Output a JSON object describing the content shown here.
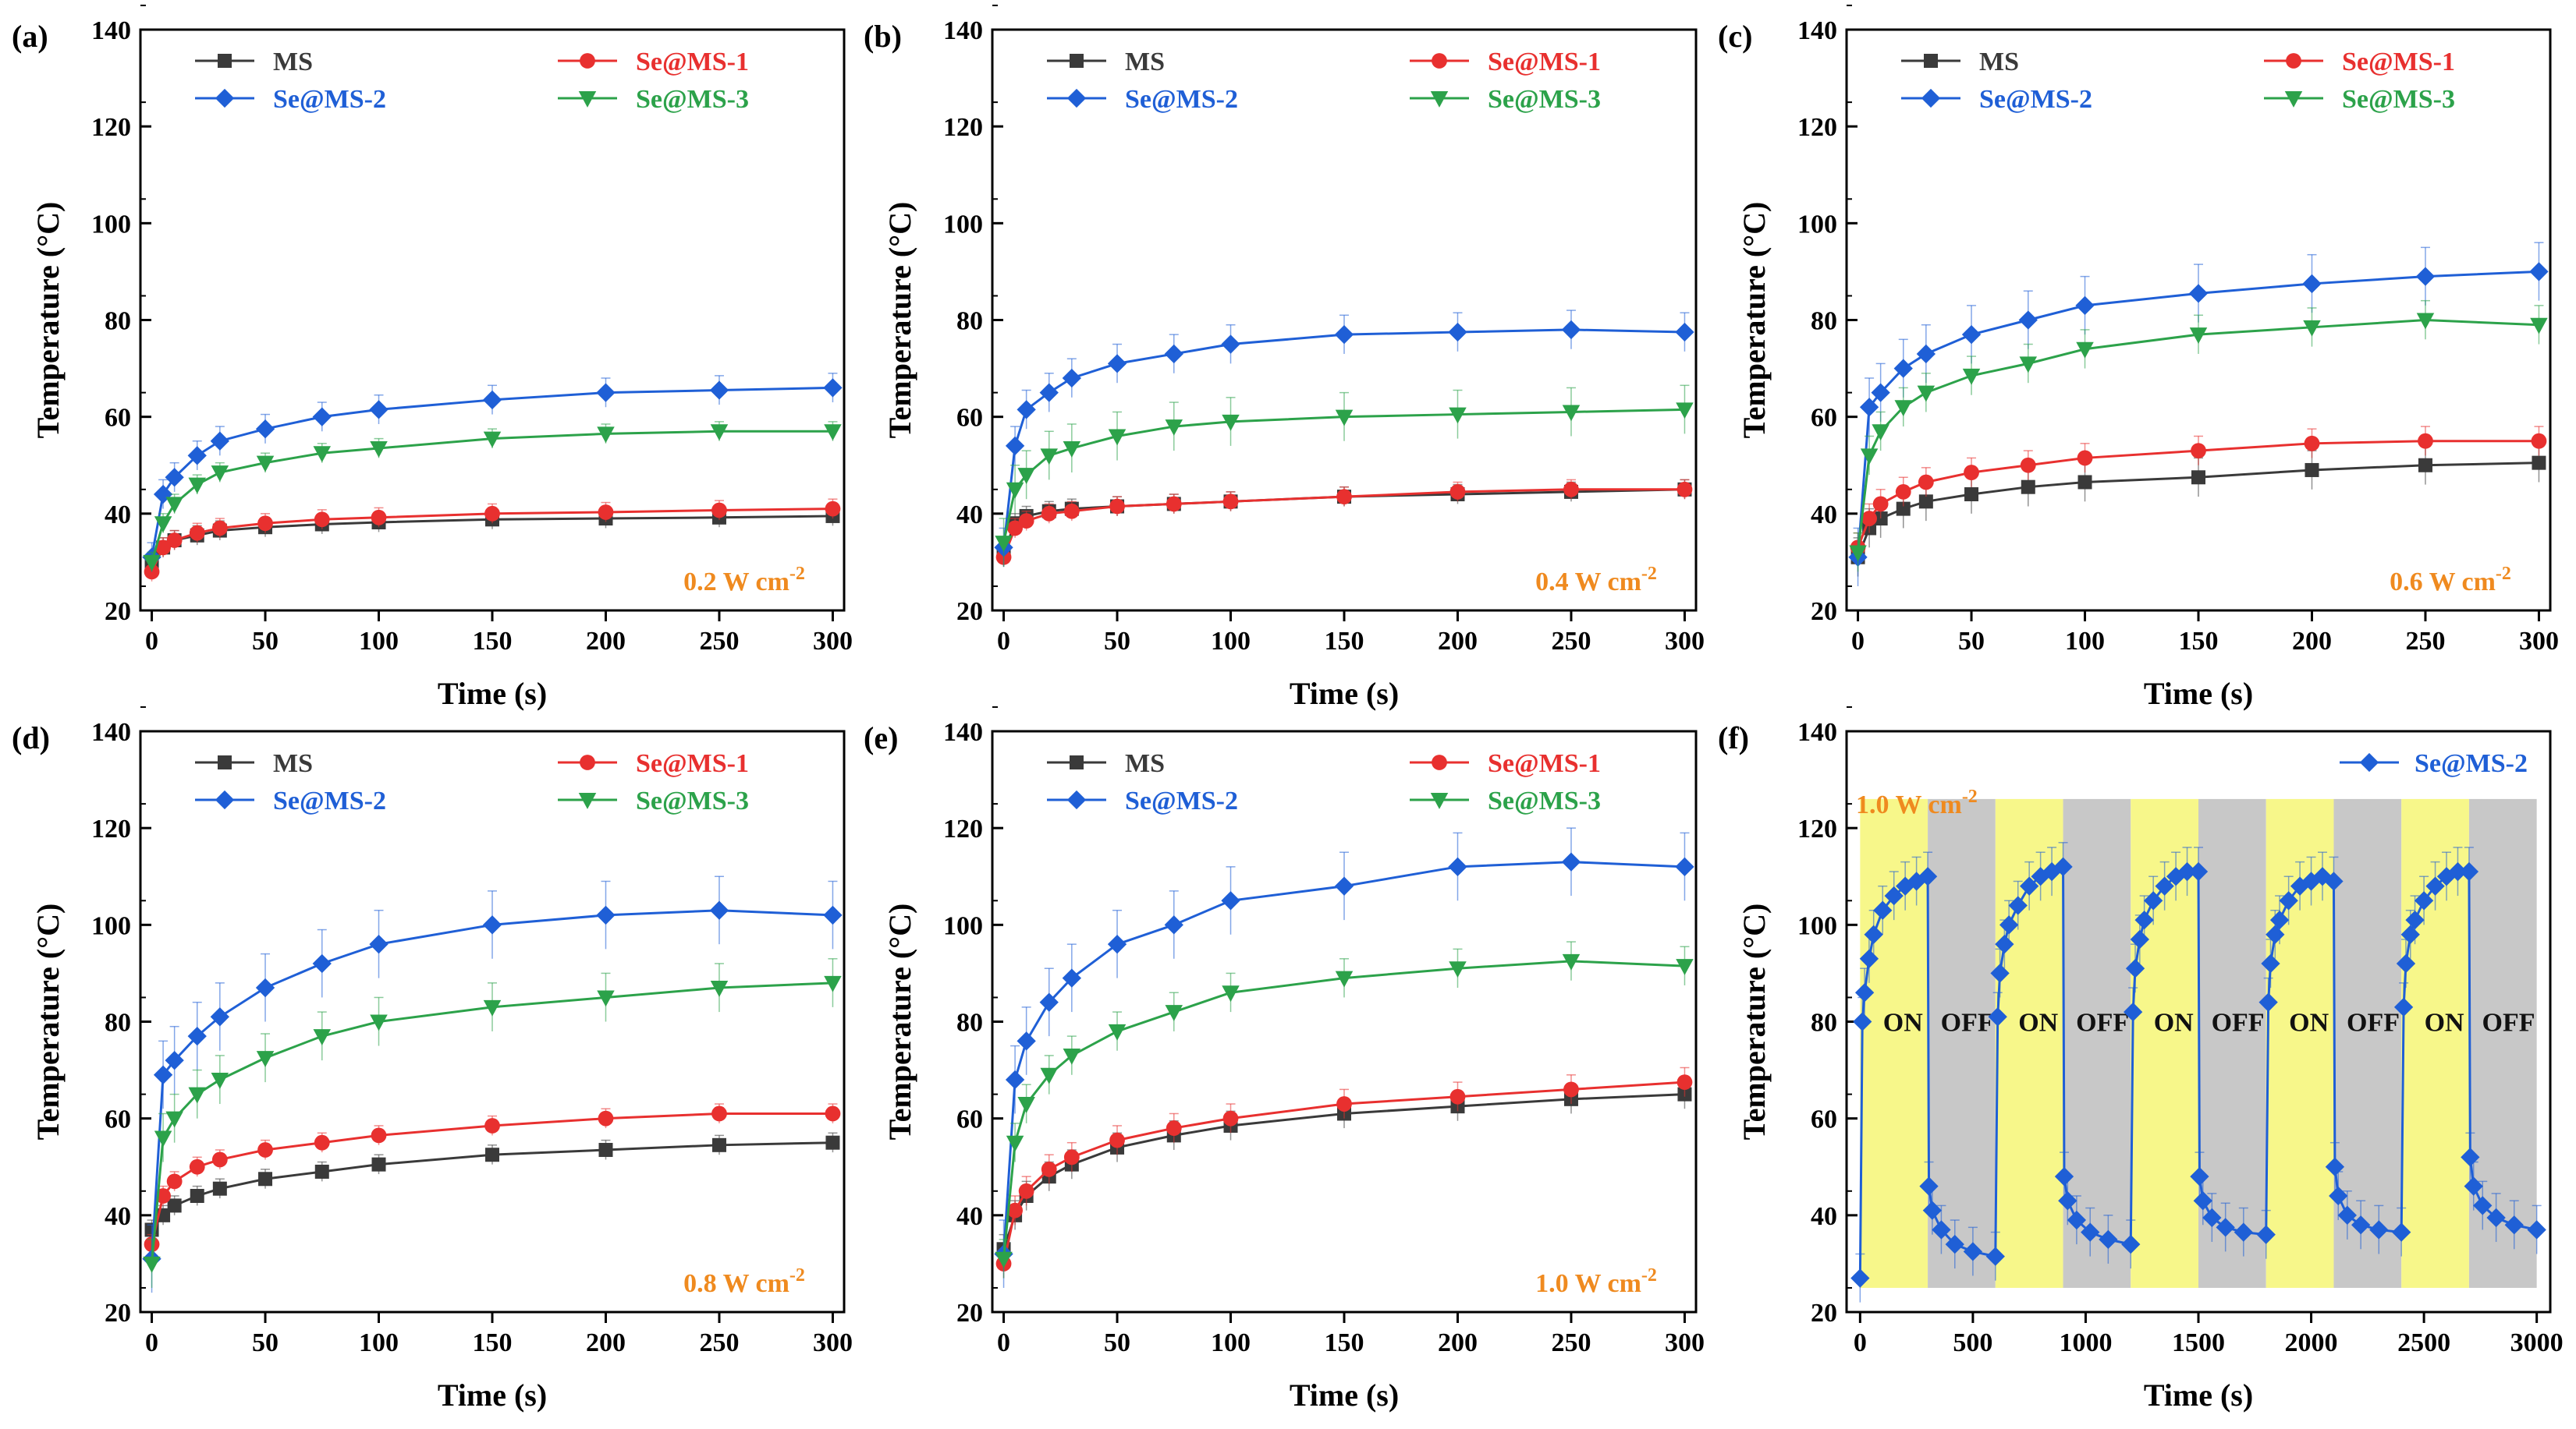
{
  "figure": {
    "power_unit": "W cm",
    "power_exponent": "-2"
  },
  "colors": {
    "MS": "#3a3a3a",
    "Se@MS-1": "#e8302f",
    "Se@MS-2": "#1f5fd6",
    "Se@MS-3": "#2ca24a",
    "power_label": "#ef8a1f",
    "on_band": "#f7f78a",
    "off_band": "#c8c8c8"
  },
  "chart_data": [
    {
      "panel": "(a)",
      "type": "line",
      "xlabel": "Time (s)",
      "ylabel": "Temperature (°C)",
      "xlim": [
        -5,
        305
      ],
      "ylim": [
        20,
        140
      ],
      "xticks": [
        0,
        50,
        100,
        150,
        200,
        250,
        300
      ],
      "yticks": [
        20,
        40,
        60,
        80,
        100,
        120,
        140
      ],
      "power": "0.2",
      "legend": [
        "MS",
        "Se@MS-1",
        "Se@MS-2",
        "Se@MS-3"
      ],
      "series": [
        {
          "name": "MS",
          "marker": "square",
          "x": [
            0,
            5,
            10,
            20,
            30,
            50,
            75,
            100,
            150,
            200,
            250,
            300
          ],
          "y": [
            30,
            33,
            34.5,
            35.5,
            36.5,
            37.2,
            37.8,
            38.2,
            38.8,
            39,
            39.2,
            39.5
          ],
          "err": 2
        },
        {
          "name": "Se@MS-1",
          "marker": "circle",
          "x": [
            0,
            5,
            10,
            20,
            30,
            50,
            75,
            100,
            150,
            200,
            250,
            300
          ],
          "y": [
            28,
            33,
            34.5,
            36,
            37,
            38,
            38.8,
            39.2,
            40,
            40.3,
            40.7,
            41
          ],
          "err": 2
        },
        {
          "name": "Se@MS-2",
          "marker": "diamond",
          "x": [
            0,
            5,
            10,
            20,
            30,
            50,
            75,
            100,
            150,
            200,
            250,
            300
          ],
          "y": [
            31,
            44,
            47.5,
            52,
            55,
            57.5,
            60,
            61.5,
            63.5,
            65,
            65.5,
            66
          ],
          "err": 3
        },
        {
          "name": "Se@MS-3",
          "marker": "triangle",
          "x": [
            0,
            5,
            10,
            20,
            30,
            50,
            75,
            100,
            150,
            200,
            250,
            300
          ],
          "y": [
            30,
            38,
            42,
            46,
            48.5,
            50.5,
            52.5,
            53.5,
            55.5,
            56.5,
            57,
            57
          ],
          "err": 2
        }
      ]
    },
    {
      "panel": "(b)",
      "type": "line",
      "xlabel": "Time (s)",
      "ylabel": "Temperature (°C)",
      "xlim": [
        -5,
        305
      ],
      "ylim": [
        20,
        140
      ],
      "xticks": [
        0,
        50,
        100,
        150,
        200,
        250,
        300
      ],
      "yticks": [
        20,
        40,
        60,
        80,
        100,
        120,
        140
      ],
      "power": "0.4",
      "legend": [
        "MS",
        "Se@MS-1",
        "Se@MS-2",
        "Se@MS-3"
      ],
      "series": [
        {
          "name": "MS",
          "marker": "square",
          "x": [
            0,
            5,
            10,
            20,
            30,
            50,
            75,
            100,
            150,
            200,
            250,
            300
          ],
          "y": [
            32,
            38,
            39.5,
            40.5,
            41,
            41.5,
            42,
            42.5,
            43.5,
            44,
            44.5,
            45
          ],
          "err": 2
        },
        {
          "name": "Se@MS-1",
          "marker": "circle",
          "x": [
            0,
            5,
            10,
            20,
            30,
            50,
            75,
            100,
            150,
            200,
            250,
            300
          ],
          "y": [
            31,
            37,
            38.5,
            40,
            40.5,
            41.5,
            42,
            42.5,
            43.5,
            44.5,
            45,
            45
          ],
          "err": 2
        },
        {
          "name": "Se@MS-2",
          "marker": "diamond",
          "x": [
            0,
            5,
            10,
            20,
            30,
            50,
            75,
            100,
            150,
            200,
            250,
            300
          ],
          "y": [
            33,
            54,
            61.5,
            65,
            68,
            71,
            73,
            75,
            77,
            77.5,
            78,
            77.5
          ],
          "err": 4
        },
        {
          "name": "Se@MS-3",
          "marker": "triangle",
          "x": [
            0,
            5,
            10,
            20,
            30,
            50,
            75,
            100,
            150,
            200,
            250,
            300
          ],
          "y": [
            34,
            45,
            48,
            52,
            53.5,
            56,
            58,
            59,
            60,
            60.5,
            61,
            61.5
          ],
          "err": 5
        }
      ]
    },
    {
      "panel": "(c)",
      "type": "line",
      "xlabel": "Time (s)",
      "ylabel": "Temperature (°C)",
      "xlim": [
        -5,
        305
      ],
      "ylim": [
        20,
        140
      ],
      "xticks": [
        0,
        50,
        100,
        150,
        200,
        250,
        300
      ],
      "yticks": [
        20,
        40,
        60,
        80,
        100,
        120,
        140
      ],
      "power": "0.6",
      "legend": [
        "MS",
        "Se@MS-1",
        "Se@MS-2",
        "Se@MS-3"
      ],
      "series": [
        {
          "name": "MS",
          "marker": "square",
          "x": [
            0,
            5,
            10,
            20,
            30,
            50,
            75,
            100,
            150,
            200,
            250,
            300
          ],
          "y": [
            31,
            37,
            39,
            41,
            42.5,
            44,
            45.5,
            46.5,
            47.5,
            49,
            50,
            50.5
          ],
          "err": 4
        },
        {
          "name": "Se@MS-1",
          "marker": "circle",
          "x": [
            0,
            5,
            10,
            20,
            30,
            50,
            75,
            100,
            150,
            200,
            250,
            300
          ],
          "y": [
            33,
            39,
            42,
            44.5,
            46.5,
            48.5,
            50,
            51.5,
            53,
            54.5,
            55,
            55
          ],
          "err": 3
        },
        {
          "name": "Se@MS-2",
          "marker": "diamond",
          "x": [
            0,
            5,
            10,
            20,
            30,
            50,
            75,
            100,
            150,
            200,
            250,
            300
          ],
          "y": [
            31,
            62,
            65,
            70,
            73,
            77,
            80,
            83,
            85.5,
            87.5,
            89,
            90
          ],
          "err": 6
        },
        {
          "name": "Se@MS-3",
          "marker": "triangle",
          "x": [
            0,
            5,
            10,
            20,
            30,
            50,
            75,
            100,
            150,
            200,
            250,
            300
          ],
          "y": [
            32,
            52,
            57,
            62,
            65,
            68.5,
            71,
            74,
            77,
            78.5,
            80,
            79
          ],
          "err": 4
        }
      ]
    },
    {
      "panel": "(d)",
      "type": "line",
      "xlabel": "Time (s)",
      "ylabel": "Temperature (°C)",
      "xlim": [
        -5,
        305
      ],
      "ylim": [
        20,
        140
      ],
      "xticks": [
        0,
        50,
        100,
        150,
        200,
        250,
        300
      ],
      "yticks": [
        20,
        40,
        60,
        80,
        100,
        120,
        140
      ],
      "power": "0.8",
      "legend": [
        "MS",
        "Se@MS-1",
        "Se@MS-2",
        "Se@MS-3"
      ],
      "series": [
        {
          "name": "MS",
          "marker": "square",
          "x": [
            0,
            5,
            10,
            20,
            30,
            50,
            75,
            100,
            150,
            200,
            250,
            300
          ],
          "y": [
            37,
            40,
            42,
            44,
            45.5,
            47.5,
            49,
            50.5,
            52.5,
            53.5,
            54.5,
            55
          ],
          "err": 2
        },
        {
          "name": "Se@MS-1",
          "marker": "circle",
          "x": [
            0,
            5,
            10,
            20,
            30,
            50,
            75,
            100,
            150,
            200,
            250,
            300
          ],
          "y": [
            34,
            44,
            47,
            50,
            51.5,
            53.5,
            55,
            56.5,
            58.5,
            60,
            61,
            61
          ],
          "err": 2
        },
        {
          "name": "Se@MS-2",
          "marker": "diamond",
          "x": [
            0,
            5,
            10,
            20,
            30,
            50,
            75,
            100,
            150,
            200,
            250,
            300
          ],
          "y": [
            31,
            69,
            72,
            77,
            81,
            87,
            92,
            96,
            100,
            102,
            103,
            102
          ],
          "err": 7
        },
        {
          "name": "Se@MS-3",
          "marker": "triangle",
          "x": [
            0,
            5,
            10,
            20,
            30,
            50,
            75,
            100,
            150,
            200,
            250,
            300
          ],
          "y": [
            30,
            56,
            60,
            65,
            68,
            72.5,
            77,
            80,
            83,
            85,
            87,
            88
          ],
          "err": 5
        }
      ]
    },
    {
      "panel": "(e)",
      "type": "line",
      "xlabel": "Time (s)",
      "ylabel": "Temperature (°C)",
      "xlim": [
        -5,
        305
      ],
      "ylim": [
        20,
        140
      ],
      "xticks": [
        0,
        50,
        100,
        150,
        200,
        250,
        300
      ],
      "yticks": [
        20,
        40,
        60,
        80,
        100,
        120,
        140
      ],
      "power": "1.0",
      "legend": [
        "MS",
        "Se@MS-1",
        "Se@MS-2",
        "Se@MS-3"
      ],
      "series": [
        {
          "name": "MS",
          "marker": "square",
          "x": [
            0,
            5,
            10,
            20,
            30,
            50,
            75,
            100,
            150,
            200,
            250,
            300
          ],
          "y": [
            33,
            40,
            44,
            48,
            50.5,
            54,
            56.5,
            58.5,
            61,
            62.5,
            64,
            65
          ],
          "err": 3
        },
        {
          "name": "Se@MS-1",
          "marker": "circle",
          "x": [
            0,
            5,
            10,
            20,
            30,
            50,
            75,
            100,
            150,
            200,
            250,
            300
          ],
          "y": [
            30,
            41,
            45,
            49.5,
            52,
            55.5,
            58,
            60,
            63,
            64.5,
            66,
            67.5
          ],
          "err": 3
        },
        {
          "name": "Se@MS-2",
          "marker": "diamond",
          "x": [
            0,
            5,
            10,
            20,
            30,
            50,
            75,
            100,
            150,
            200,
            250,
            300
          ],
          "y": [
            32,
            68,
            76,
            84,
            89,
            96,
            100,
            105,
            108,
            112,
            113,
            112
          ],
          "err": 7
        },
        {
          "name": "Se@MS-3",
          "marker": "triangle",
          "x": [
            0,
            5,
            10,
            20,
            30,
            50,
            75,
            100,
            150,
            200,
            250,
            300
          ],
          "y": [
            31,
            55,
            63,
            69,
            73,
            78,
            82,
            86,
            89,
            91,
            92.5,
            91.5
          ],
          "err": 4
        }
      ]
    },
    {
      "panel": "(f)",
      "type": "line",
      "xlabel": "Time (s)",
      "ylabel": "Temperature (°C)",
      "xlim": [
        -60,
        3060
      ],
      "ylim": [
        20,
        140
      ],
      "xticks": [
        0,
        500,
        1000,
        1500,
        2000,
        2500,
        3000
      ],
      "yticks": [
        20,
        40,
        60,
        80,
        100,
        120,
        140
      ],
      "power": "1.0",
      "legend": [
        "Se@MS-2"
      ],
      "cycle_labels": [
        "ON",
        "OFF"
      ],
      "cycles": [
        {
          "on": [
            0,
            300
          ],
          "off": [
            300,
            600
          ]
        },
        {
          "on": [
            600,
            900
          ],
          "off": [
            900,
            1200
          ]
        },
        {
          "on": [
            1200,
            1500
          ],
          "off": [
            1500,
            1800
          ]
        },
        {
          "on": [
            1800,
            2100
          ],
          "off": [
            2100,
            2400
          ]
        },
        {
          "on": [
            2400,
            2700
          ],
          "off": [
            2700,
            3000
          ]
        }
      ],
      "band_top": 126,
      "series": [
        {
          "name": "Se@MS-2",
          "marker": "diamond",
          "x": [
            0,
            10,
            20,
            40,
            60,
            100,
            150,
            200,
            250,
            300,
            305,
            320,
            360,
            420,
            500,
            600,
            610,
            620,
            640,
            660,
            700,
            750,
            800,
            850,
            900,
            905,
            920,
            960,
            1020,
            1100,
            1200,
            1210,
            1220,
            1240,
            1260,
            1300,
            1350,
            1400,
            1450,
            1500,
            1505,
            1520,
            1560,
            1620,
            1700,
            1800,
            1810,
            1820,
            1840,
            1860,
            1900,
            1950,
            2000,
            2050,
            2100,
            2105,
            2120,
            2160,
            2220,
            2300,
            2400,
            2410,
            2420,
            2440,
            2460,
            2500,
            2550,
            2600,
            2650,
            2700,
            2705,
            2720,
            2760,
            2820,
            2900,
            3000
          ],
          "y": [
            27,
            80,
            86,
            93,
            98,
            103,
            106,
            108,
            109,
            110,
            46,
            41,
            37,
            34,
            32.5,
            31.5,
            81,
            90,
            96,
            100,
            104,
            108,
            110,
            111,
            112,
            48,
            43,
            39,
            36.5,
            35,
            34,
            82,
            91,
            97,
            101,
            105,
            108,
            110,
            111,
            111,
            48,
            43,
            39.5,
            37.5,
            36.5,
            36,
            84,
            92,
            98,
            101,
            105,
            108,
            109,
            110,
            109,
            50,
            44,
            40,
            38,
            37,
            36.5,
            83,
            92,
            98,
            101,
            105,
            108,
            110,
            111,
            111,
            52,
            46,
            42,
            39.5,
            38,
            37
          ],
          "err": 5
        }
      ]
    }
  ]
}
